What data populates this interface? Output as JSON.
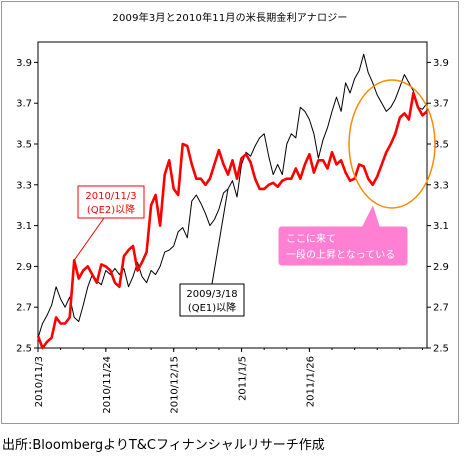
{
  "source": "出所:BloombergよりT&Cフィナンシャルリサーチ作成",
  "chart_data": {
    "type": "line",
    "title": "2009年3月と2010年11月の米長期金利アナロジー",
    "x_tick_labels": [
      "2010/11/3",
      "2010/11/24",
      "2010/12/15",
      "2011/1/5",
      "2011/1/26"
    ],
    "left_axis": {
      "ticks": [
        "2.5",
        "2.7",
        "2.9",
        "3.1",
        "3.3",
        "3.5",
        "3.7",
        "3.9"
      ],
      "ylim": [
        2.5,
        4.0
      ]
    },
    "right_axis": {
      "ticks": [
        "2.5",
        "2.7",
        "2.9",
        "3.1",
        "3.3",
        "3.5",
        "3.7",
        "3.9"
      ],
      "ylim": [
        2.5,
        4.0
      ]
    },
    "grid": false,
    "legend": "none",
    "series": [
      {
        "name": "2010/11/3(QE2)以降",
        "color": "#ff0000",
        "x": [
          0,
          1,
          2,
          3,
          4,
          5,
          6,
          7,
          8,
          9,
          10,
          11,
          12,
          13,
          14,
          15,
          16,
          17,
          18,
          19,
          20,
          21,
          22,
          23,
          24,
          25,
          26,
          27,
          28,
          29,
          30,
          31,
          32,
          33,
          34,
          35,
          36,
          37,
          38,
          39,
          40,
          41,
          42,
          43,
          44,
          45,
          46,
          47,
          48,
          49,
          50,
          51,
          52,
          53,
          54,
          55,
          56,
          57,
          58,
          59,
          60,
          61,
          62,
          63,
          64,
          65,
          66,
          67,
          68,
          69,
          70,
          71,
          72,
          73,
          74,
          75,
          76,
          77,
          78,
          79,
          80,
          81,
          82,
          83,
          84,
          85,
          86
        ],
        "values": [
          2.56,
          2.5,
          2.53,
          2.55,
          2.65,
          2.62,
          2.62,
          2.65,
          2.93,
          2.84,
          2.88,
          2.9,
          2.86,
          2.82,
          2.91,
          2.9,
          2.88,
          2.82,
          2.8,
          2.95,
          2.98,
          3.0,
          2.88,
          2.92,
          2.97,
          3.2,
          3.25,
          3.1,
          3.35,
          3.42,
          3.28,
          3.25,
          3.5,
          3.49,
          3.4,
          3.33,
          3.33,
          3.3,
          3.33,
          3.4,
          3.47,
          3.4,
          3.35,
          3.42,
          3.33,
          3.43,
          3.45,
          3.41,
          3.33,
          3.28,
          3.28,
          3.3,
          3.31,
          3.29,
          3.32,
          3.33,
          3.33,
          3.38,
          3.33,
          3.4,
          3.45,
          3.36,
          3.42,
          3.42,
          3.38,
          3.46,
          3.4,
          3.42,
          3.36,
          3.32,
          3.33,
          3.4,
          3.39,
          3.33,
          3.3,
          3.34,
          3.4,
          3.46,
          3.5,
          3.55,
          3.63,
          3.65,
          3.62,
          3.75,
          3.68,
          3.64,
          3.66
        ]
      },
      {
        "name": "2009/3/18(QE1)以降",
        "color": "#000000",
        "x": [
          0,
          1,
          2,
          3,
          4,
          5,
          6,
          7,
          8,
          9,
          10,
          11,
          12,
          13,
          14,
          15,
          16,
          17,
          18,
          19,
          20,
          21,
          22,
          23,
          24,
          25,
          26,
          27,
          28,
          29,
          30,
          31,
          32,
          33,
          34,
          35,
          36,
          37,
          38,
          39,
          40,
          41,
          42,
          43,
          44,
          45,
          46,
          47,
          48,
          49,
          50,
          51,
          52,
          53,
          54,
          55,
          56,
          57,
          58,
          59,
          60,
          61,
          62,
          63,
          64,
          65,
          66,
          67,
          68,
          69,
          70,
          71,
          72,
          73,
          74,
          75,
          76,
          77,
          78,
          79,
          80,
          81,
          82,
          83,
          84,
          85,
          86
        ],
        "values": [
          2.55,
          2.62,
          2.66,
          2.71,
          2.8,
          2.74,
          2.7,
          2.75,
          2.65,
          2.63,
          2.71,
          2.8,
          2.86,
          2.83,
          2.81,
          2.88,
          2.86,
          2.89,
          2.86,
          2.89,
          2.8,
          2.85,
          2.92,
          2.85,
          2.82,
          2.88,
          2.86,
          2.9,
          2.97,
          2.98,
          3.0,
          3.07,
          3.09,
          3.04,
          3.22,
          3.25,
          3.21,
          3.16,
          3.1,
          3.13,
          3.18,
          3.26,
          3.28,
          3.32,
          3.24,
          3.4,
          3.46,
          3.44,
          3.49,
          3.53,
          3.55,
          3.44,
          3.35,
          3.4,
          3.35,
          3.5,
          3.55,
          3.53,
          3.68,
          3.66,
          3.62,
          3.55,
          3.43,
          3.52,
          3.58,
          3.66,
          3.73,
          3.66,
          3.8,
          3.75,
          3.82,
          3.86,
          3.94,
          3.85,
          3.8,
          3.74,
          3.7,
          3.66,
          3.68,
          3.72,
          3.78,
          3.84,
          3.8,
          3.76,
          3.68,
          3.67,
          3.7
        ]
      }
    ],
    "annotations": [
      {
        "text_lines": [
          "2010/11/3",
          "(QE2)以降"
        ],
        "color": "#ff0000",
        "target_series": 0,
        "target_x": 8
      },
      {
        "text_lines": [
          "2009/3/18",
          "(QE1)以降"
        ],
        "color": "#000000",
        "target_series": 1,
        "target_x": 42
      },
      {
        "text_lines": [
          "ここに来て",
          "一段の上昇となっている"
        ],
        "callout_fill": "#ff7fd3",
        "highlight_ellipse_color": "#ff8a00"
      }
    ]
  }
}
